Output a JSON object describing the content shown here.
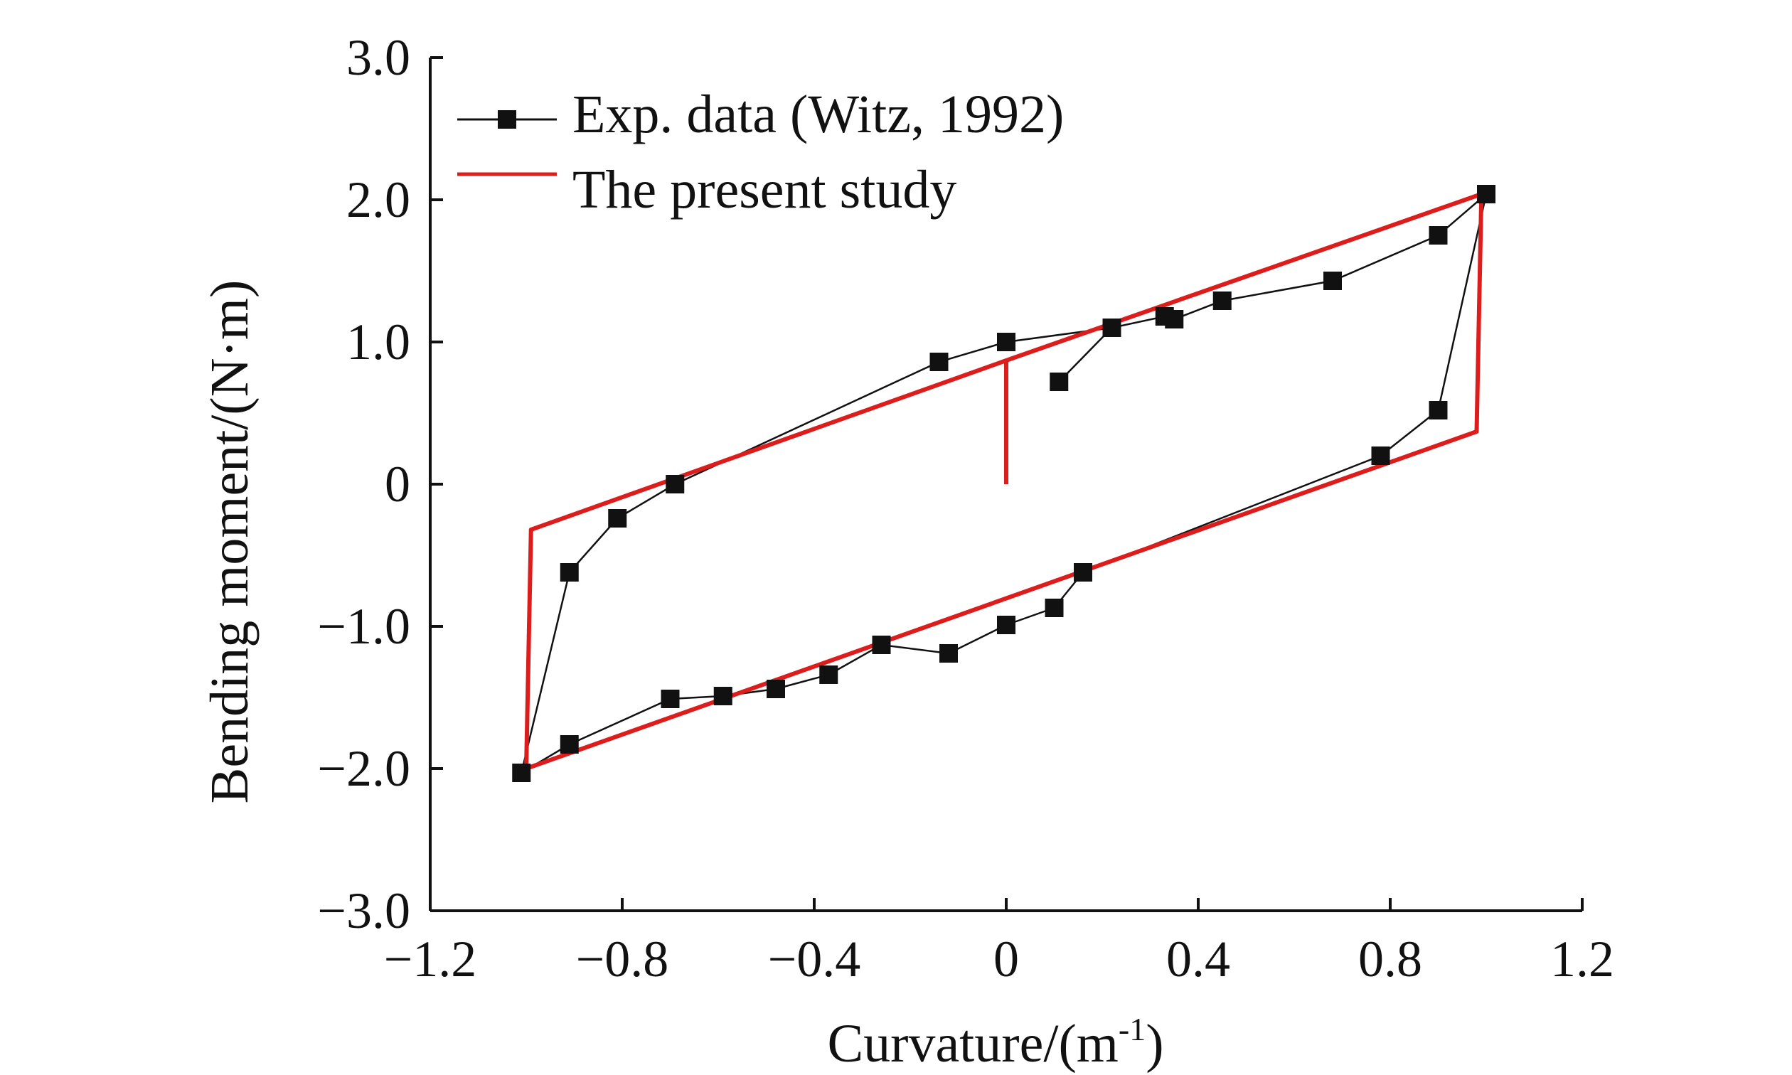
{
  "chart_data": {
    "type": "line",
    "title": "",
    "xlabel": "Curvature/(m",
    "xlabel_sup": "-1",
    "xlabel_close": ")",
    "ylabel": "Bending moment/(N·m)",
    "xlim": [
      -1.2,
      1.2
    ],
    "ylim": [
      -3.0,
      3.0
    ],
    "xticks": [
      -1.2,
      -0.8,
      -0.4,
      0,
      0.4,
      0.8,
      1.2
    ],
    "xtick_labels": [
      "−1.2",
      "−0.8",
      "−0.4",
      "0",
      "0.4",
      "0.8",
      "1.2"
    ],
    "yticks": [
      3.0,
      2.0,
      1.0,
      0,
      -1.0,
      -2.0,
      -3.0
    ],
    "ytick_labels": [
      "3.0",
      "2.0",
      "1.0",
      "0",
      "−1.0",
      "−2.0",
      "−3.0"
    ],
    "grid": false,
    "legend_position": "top-left",
    "series": [
      {
        "name": "Exp. data (Witz, 1992)",
        "color": "#111111",
        "marker": "square",
        "x": [
          0.11,
          0.22,
          0.33,
          0.35,
          0.45,
          0.68,
          0.9,
          1.0,
          0.9,
          0.78,
          0.16,
          0.1,
          0.0,
          -0.12,
          -0.26,
          -0.37,
          -0.48,
          -0.59,
          -0.7,
          -0.91,
          -1.01,
          -0.91,
          -0.81,
          -0.69,
          -0.14,
          0.0,
          0.22
        ],
        "y": [
          0.72,
          1.1,
          1.18,
          1.16,
          1.29,
          1.43,
          1.75,
          2.04,
          0.52,
          0.2,
          -0.62,
          -0.87,
          -0.99,
          -1.19,
          -1.13,
          -1.34,
          -1.44,
          -1.49,
          -1.51,
          -1.83,
          -2.03,
          -0.62,
          -0.24,
          0.0,
          0.86,
          1.0,
          1.1
        ]
      },
      {
        "name": "The present study",
        "color": "#dd1c1c",
        "marker": "none",
        "x": [
          0.0,
          0.0,
          0.99,
          0.99,
          0.98,
          -1.0,
          -1.0,
          -0.99,
          0.0,
          0.0
        ],
        "y": [
          0.0,
          0.87,
          2.04,
          2.04,
          0.37,
          -2.0,
          -2.0,
          -0.32,
          0.87,
          0.0
        ]
      }
    ]
  }
}
